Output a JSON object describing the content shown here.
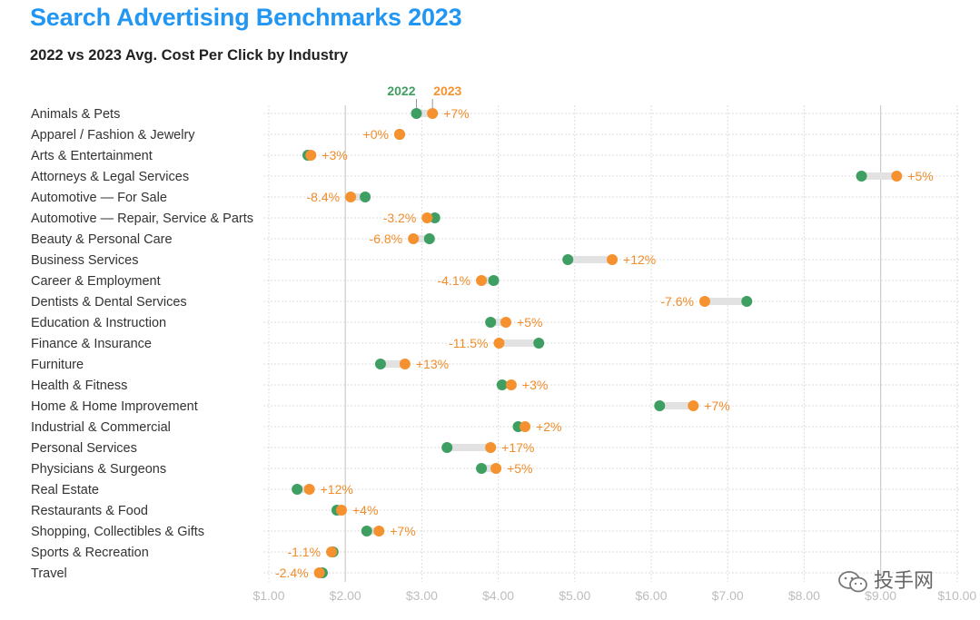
{
  "header": {
    "title": "Search Advertising Benchmarks 2023",
    "subtitle": "2022 vs 2023 Avg. Cost Per Click by Industry"
  },
  "watermark": {
    "text": "投手网",
    "icon": "wechat-logo-icon"
  },
  "colors": {
    "y2022": "#3f9f62",
    "y2023": "#f5922f",
    "title": "#2196f3",
    "bar": "#e2e2e2",
    "grid": "#dcdcdc",
    "vline": "#cccccc"
  },
  "chart_data": {
    "type": "dumbbell",
    "title": "2022 vs 2023 Avg. Cost Per Click by Industry",
    "legend": {
      "placement": "top",
      "labels": [
        "2022",
        "2023"
      ]
    },
    "x_ticks": [
      "$1.00",
      "$2.00",
      "$3.00",
      "$4.00",
      "$5.00",
      "$6.00",
      "$7.00",
      "$8.00",
      "$9.00",
      "$10.00"
    ],
    "xlim": [
      1,
      10
    ],
    "grid": true,
    "categories": [
      "Animals & Pets",
      "Apparel / Fashion & Jewelry",
      "Arts & Entertainment",
      "Attorneys & Legal Services",
      "Automotive — For Sale",
      "Automotive — Repair, Service & Parts",
      "Beauty & Personal Care",
      "Business Services",
      "Career & Employment",
      "Dentists & Dental Services",
      "Education & Instruction",
      "Finance & Insurance",
      "Furniture",
      "Health & Fitness",
      "Home & Home Improvement",
      "Industrial & Commercial",
      "Personal Services",
      "Physicians & Surgeons",
      "Real Estate",
      "Restaurants & Food",
      "Shopping, Collectibles & Gifts",
      "Sports & Recreation",
      "Travel"
    ],
    "series": [
      {
        "name": "2022",
        "values": [
          2.93,
          2.71,
          1.51,
          8.75,
          2.26,
          3.17,
          3.1,
          4.91,
          3.94,
          7.25,
          3.9,
          4.53,
          2.46,
          4.05,
          6.11,
          4.26,
          3.33,
          3.78,
          1.37,
          1.89,
          2.28,
          1.84,
          1.7
        ]
      },
      {
        "name": "2023",
        "values": [
          3.14,
          2.71,
          1.55,
          9.21,
          2.07,
          3.07,
          2.89,
          5.49,
          3.78,
          6.7,
          4.1,
          4.01,
          2.78,
          4.17,
          6.55,
          4.35,
          3.9,
          3.97,
          1.53,
          1.95,
          2.44,
          1.82,
          1.66
        ]
      }
    ],
    "change_labels": [
      "+7%",
      "+0%",
      "+3%",
      "+5%",
      "-8.4%",
      "-3.2%",
      "-6.8%",
      "+12%",
      "-4.1%",
      "-7.6%",
      "+5%",
      "-11.5%",
      "+13%",
      "+3%",
      "+7%",
      "+2%",
      "+17%",
      "+5%",
      "+12%",
      "+4%",
      "+7%",
      "-1.1%",
      "-2.4%"
    ]
  }
}
